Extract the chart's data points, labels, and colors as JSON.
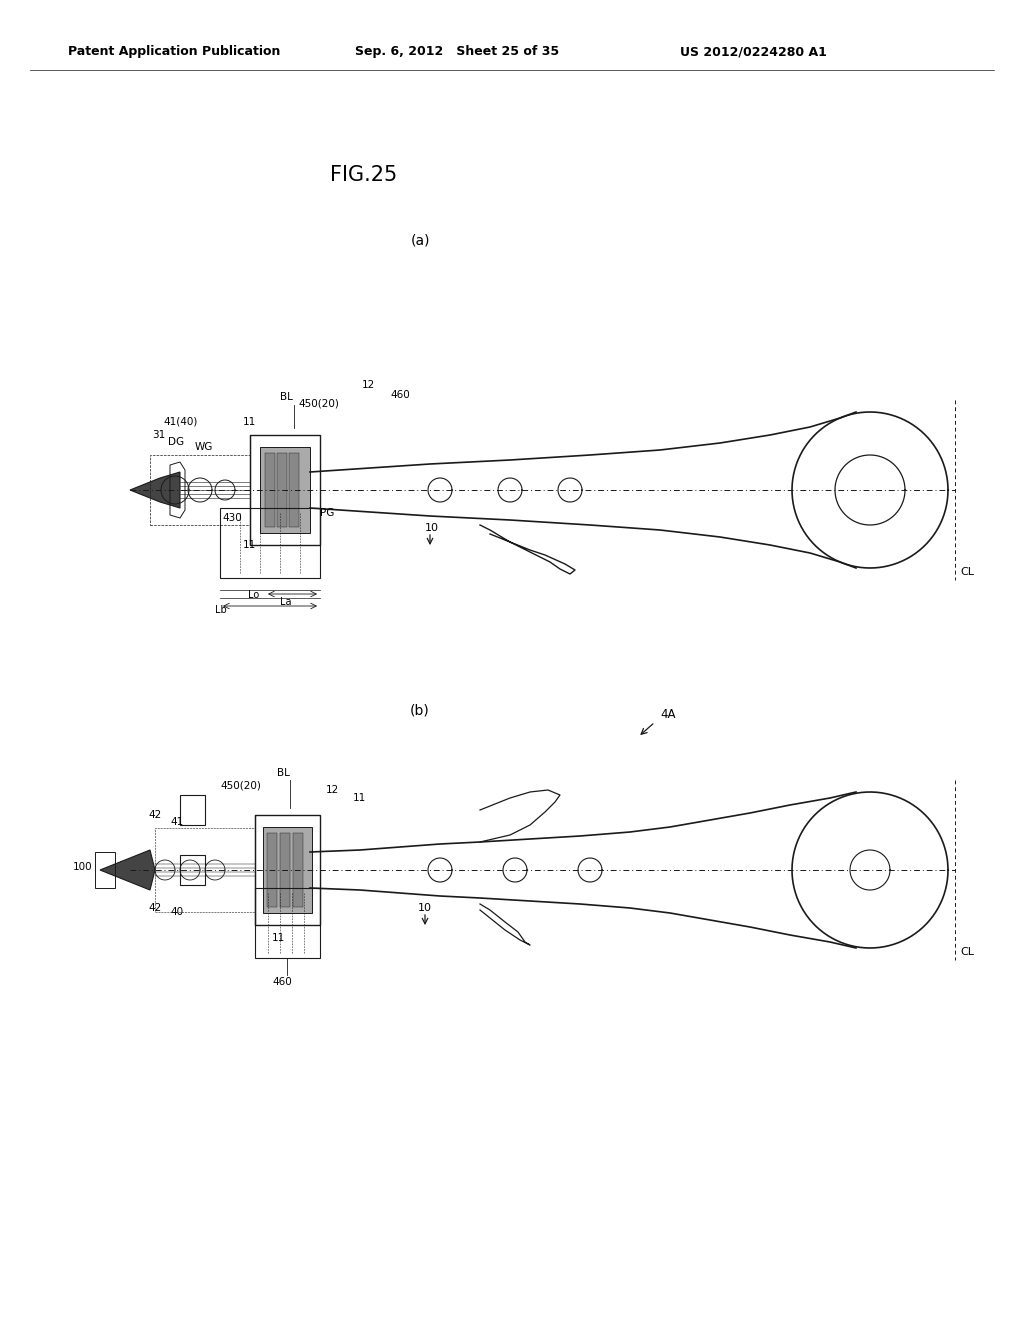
{
  "title": "FIG.25",
  "header_left": "Patent Application Publication",
  "header_center": "Sep. 6, 2012   Sheet 25 of 35",
  "header_right": "US 2012/0224280 A1",
  "label_a": "(a)",
  "label_b": "(b)",
  "bg_color": "#ffffff",
  "text_color": "#000000",
  "line_color": "#1a1a1a"
}
